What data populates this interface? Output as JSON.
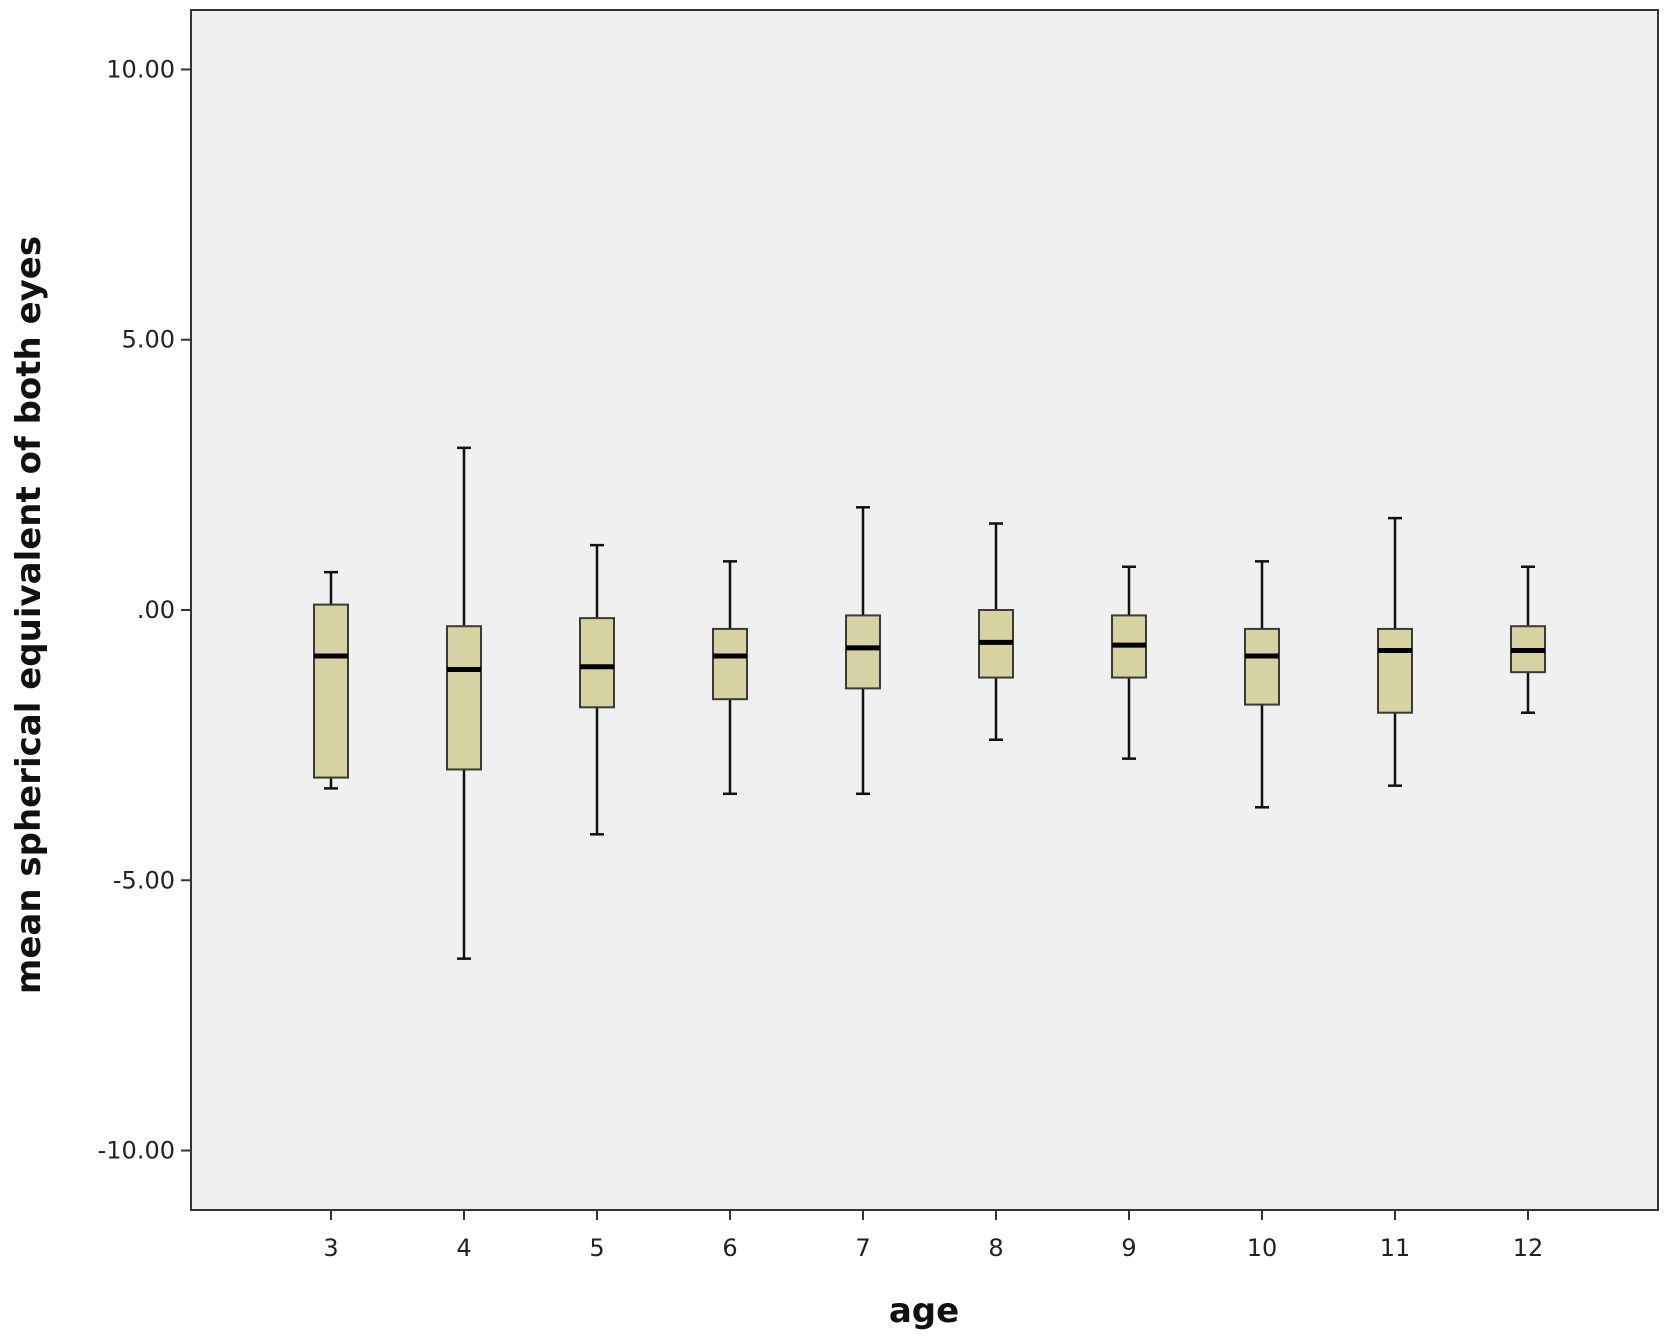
{
  "chart_data": {
    "type": "boxplot",
    "xlabel": "age",
    "ylabel": "mean spherical equivalent of both eyes",
    "ylim": [
      -11.1,
      11.1
    ],
    "y_ticks": [
      {
        "value": 10,
        "label": "10.00"
      },
      {
        "value": 5,
        "label": "5.00"
      },
      {
        "value": 0,
        "label": ".00"
      },
      {
        "value": -5,
        "label": "-5.00"
      },
      {
        "value": -10,
        "label": "-10.00"
      }
    ],
    "categories": [
      "3",
      "4",
      "5",
      "6",
      "7",
      "8",
      "9",
      "10",
      "11",
      "12"
    ],
    "boxes": [
      {
        "min": -3.3,
        "q1": -3.1,
        "median": -0.85,
        "q3": 0.1,
        "max": 0.7
      },
      {
        "min": -6.45,
        "q1": -2.95,
        "median": -1.1,
        "q3": -0.3,
        "max": 3.0
      },
      {
        "min": -4.15,
        "q1": -1.8,
        "median": -1.05,
        "q3": -0.15,
        "max": 1.2
      },
      {
        "min": -3.4,
        "q1": -1.65,
        "median": -0.85,
        "q3": -0.35,
        "max": 0.9
      },
      {
        "min": -3.4,
        "q1": -1.45,
        "median": -0.7,
        "q3": -0.1,
        "max": 1.9
      },
      {
        "min": -2.4,
        "q1": -1.25,
        "median": -0.6,
        "q3": 0.0,
        "max": 1.6
      },
      {
        "min": -2.75,
        "q1": -1.25,
        "median": -0.65,
        "q3": -0.1,
        "max": 0.8
      },
      {
        "min": -3.65,
        "q1": -1.75,
        "median": -0.85,
        "q3": -0.35,
        "max": 0.9
      },
      {
        "min": -3.25,
        "q1": -1.9,
        "median": -0.75,
        "q3": -0.35,
        "max": 1.7
      },
      {
        "min": -1.9,
        "q1": -1.15,
        "median": -0.75,
        "q3": -0.3,
        "max": 0.8
      }
    ],
    "colors": {
      "plot_background": "#f0f0f0",
      "box_fill": "#d6d2a2",
      "box_stroke": "#3a3a3a",
      "median": "#000000",
      "axis": "#333333"
    },
    "grid": false,
    "legend": "none"
  }
}
